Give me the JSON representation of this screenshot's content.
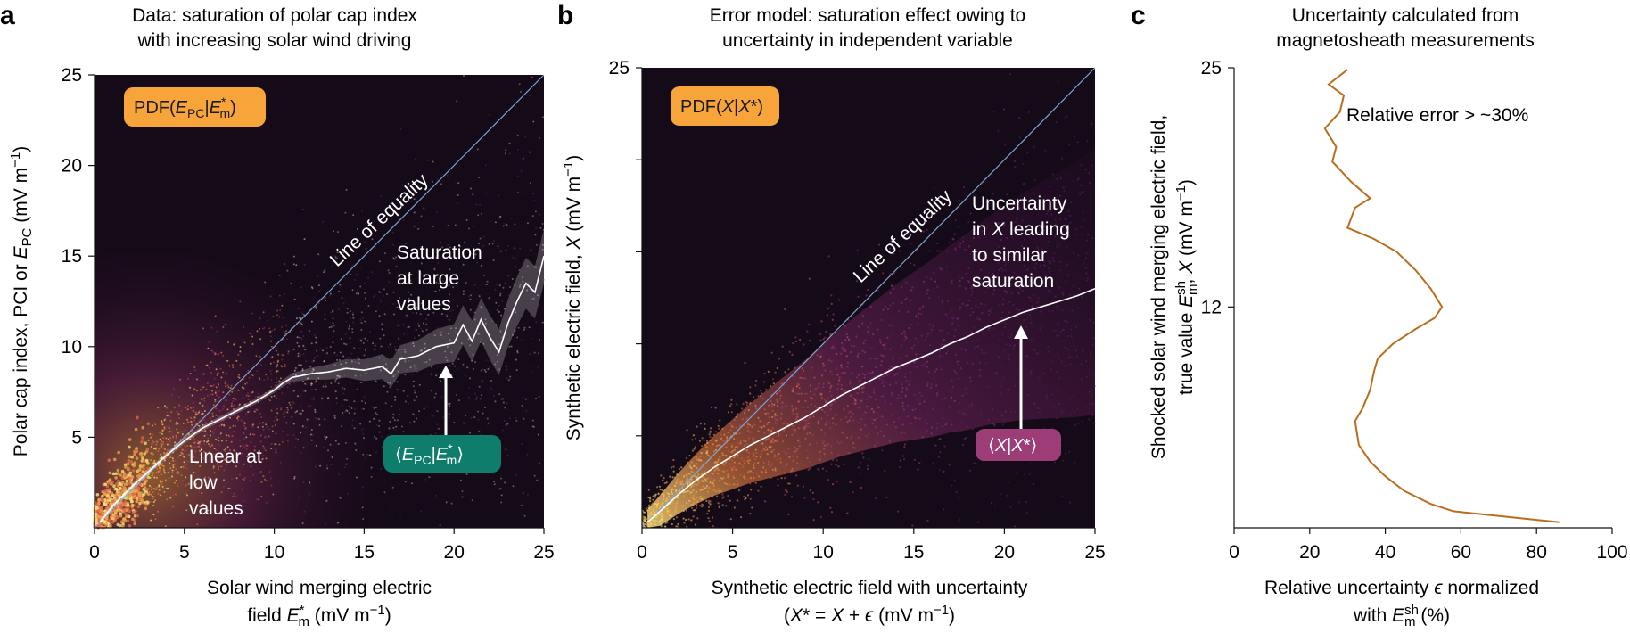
{
  "panels": [
    {
      "letter": "a",
      "title": [
        "Data: saturation of polar cap index",
        "with increasing solar wind driving"
      ],
      "badge": "PDF(E_PC|E*_m)",
      "badge_color": "#f7a43a",
      "mean_label": "⟨E_PC|E*_m⟩",
      "mean_badge_color": "#0f7d6b",
      "annotations": {
        "equality": "Line of equality",
        "saturation": [
          "Saturation",
          "at large",
          "values"
        ],
        "linear": [
          "Linear at",
          "low",
          "values"
        ]
      },
      "ylabel": "Polar cap index, PCI or E_PC (mV m^-1)",
      "xlabel": [
        "Solar wind merging electric",
        "field E*_m (mV m^-1)"
      ]
    },
    {
      "letter": "b",
      "title": [
        "Error model: saturation effect owing to",
        "uncertainty in independent variable"
      ],
      "badge": "PDF(X|X*)",
      "badge_color": "#f7a43a",
      "mean_label": "⟨X|X*⟩",
      "mean_badge_color": "#9c3d78",
      "annotations": {
        "equality": "Line of equality",
        "uncertainty": [
          "Uncertainty",
          "in X leading",
          "to similar",
          "saturation"
        ]
      },
      "ylabel": "Synthetic electric field, X (mV m^-1)",
      "xlabel": [
        "Synthetic electric field with uncertainty",
        "(X* = X + ε (mV m^-1)"
      ]
    },
    {
      "letter": "c",
      "title": [
        "Uncertainty calculated from",
        "magnetosheath measurements"
      ],
      "annotation": "Relative error > ~30%",
      "ylabel": [
        "Shocked solar wind merging electric field,",
        "true value E^sh_m, X (mV m^-1)"
      ],
      "xlabel": [
        "Relative uncertainty ε normalized",
        "with E^sh_m (%)"
      ]
    }
  ],
  "chart_data": [
    {
      "type": "heatmap",
      "panel": "a",
      "xlim": [
        0,
        25
      ],
      "ylim": [
        0,
        25
      ],
      "x_ticks": [
        0,
        5,
        10,
        15,
        20,
        25
      ],
      "y_ticks": [
        5,
        10,
        15,
        20,
        25
      ],
      "series": [
        {
          "name": "⟨E_PC|E*_m⟩",
          "x": [
            0.3,
            1,
            2,
            3,
            4,
            5,
            6,
            7,
            8,
            9,
            10,
            10.5,
            11,
            12,
            13,
            14,
            15,
            16,
            16.5,
            17,
            18,
            19,
            20,
            20.5,
            21,
            21.5,
            22,
            22.5,
            23,
            23.5,
            24,
            24.5,
            25
          ],
          "y": [
            0.3,
            1.2,
            2.2,
            3.1,
            4.0,
            4.8,
            5.5,
            6.0,
            6.5,
            7.0,
            7.6,
            8.0,
            8.3,
            8.5,
            8.6,
            8.8,
            8.7,
            8.9,
            8.5,
            9.3,
            9.5,
            10.0,
            10.2,
            11.2,
            10.3,
            11.5,
            10.5,
            9.7,
            11.3,
            12.5,
            13.5,
            13.0,
            15.0
          ]
        },
        {
          "name": "Line of equality",
          "x": [
            0,
            25
          ],
          "y": [
            0,
            25
          ]
        }
      ]
    },
    {
      "type": "heatmap",
      "panel": "b",
      "xlim": [
        0,
        25
      ],
      "ylim": [
        0,
        25
      ],
      "x_ticks": [
        0,
        5,
        10,
        15,
        20,
        25
      ],
      "y_ticks": [
        25
      ],
      "series": [
        {
          "name": "⟨X|X*⟩",
          "x": [
            0.3,
            1,
            2,
            3,
            4,
            5,
            6,
            7,
            8,
            9,
            10,
            11,
            12,
            13,
            14,
            15,
            16,
            17,
            18,
            19,
            20,
            21,
            22,
            23,
            24,
            25
          ],
          "y": [
            0.3,
            0.9,
            1.8,
            2.6,
            3.3,
            3.9,
            4.5,
            5.0,
            5.5,
            6.0,
            6.6,
            7.2,
            7.7,
            8.2,
            8.7,
            9.1,
            9.5,
            10.0,
            10.4,
            10.9,
            11.3,
            11.7,
            12.0,
            12.3,
            12.6,
            13.0
          ]
        },
        {
          "name": "Line of equality",
          "x": [
            0,
            25
          ],
          "y": [
            0,
            25
          ]
        }
      ]
    },
    {
      "type": "line",
      "panel": "c",
      "xlim": [
        0,
        100
      ],
      "ylim": [
        0,
        25
      ],
      "x_ticks": [
        0,
        20,
        40,
        60,
        80,
        100
      ],
      "y_ticks": [
        12,
        25
      ],
      "line_color": "#b96d1d",
      "series": [
        {
          "name": "",
          "x": [
            86,
            58,
            52,
            45,
            40,
            36,
            33,
            32,
            34,
            36,
            37,
            38,
            42,
            48,
            53,
            55,
            52,
            48,
            43,
            37,
            30,
            32,
            36,
            31,
            26,
            27,
            24,
            28,
            29,
            25,
            30
          ],
          "y": [
            0.3,
            0.9,
            1.3,
            2.0,
            2.8,
            3.6,
            4.5,
            5.8,
            6.5,
            7.5,
            8.5,
            9.2,
            10.0,
            10.8,
            11.4,
            12.0,
            13.0,
            14.0,
            15.0,
            15.7,
            16.3,
            17.4,
            17.9,
            18.8,
            19.9,
            20.7,
            21.7,
            22.6,
            23.5,
            24.1,
            24.9
          ]
        }
      ]
    }
  ]
}
